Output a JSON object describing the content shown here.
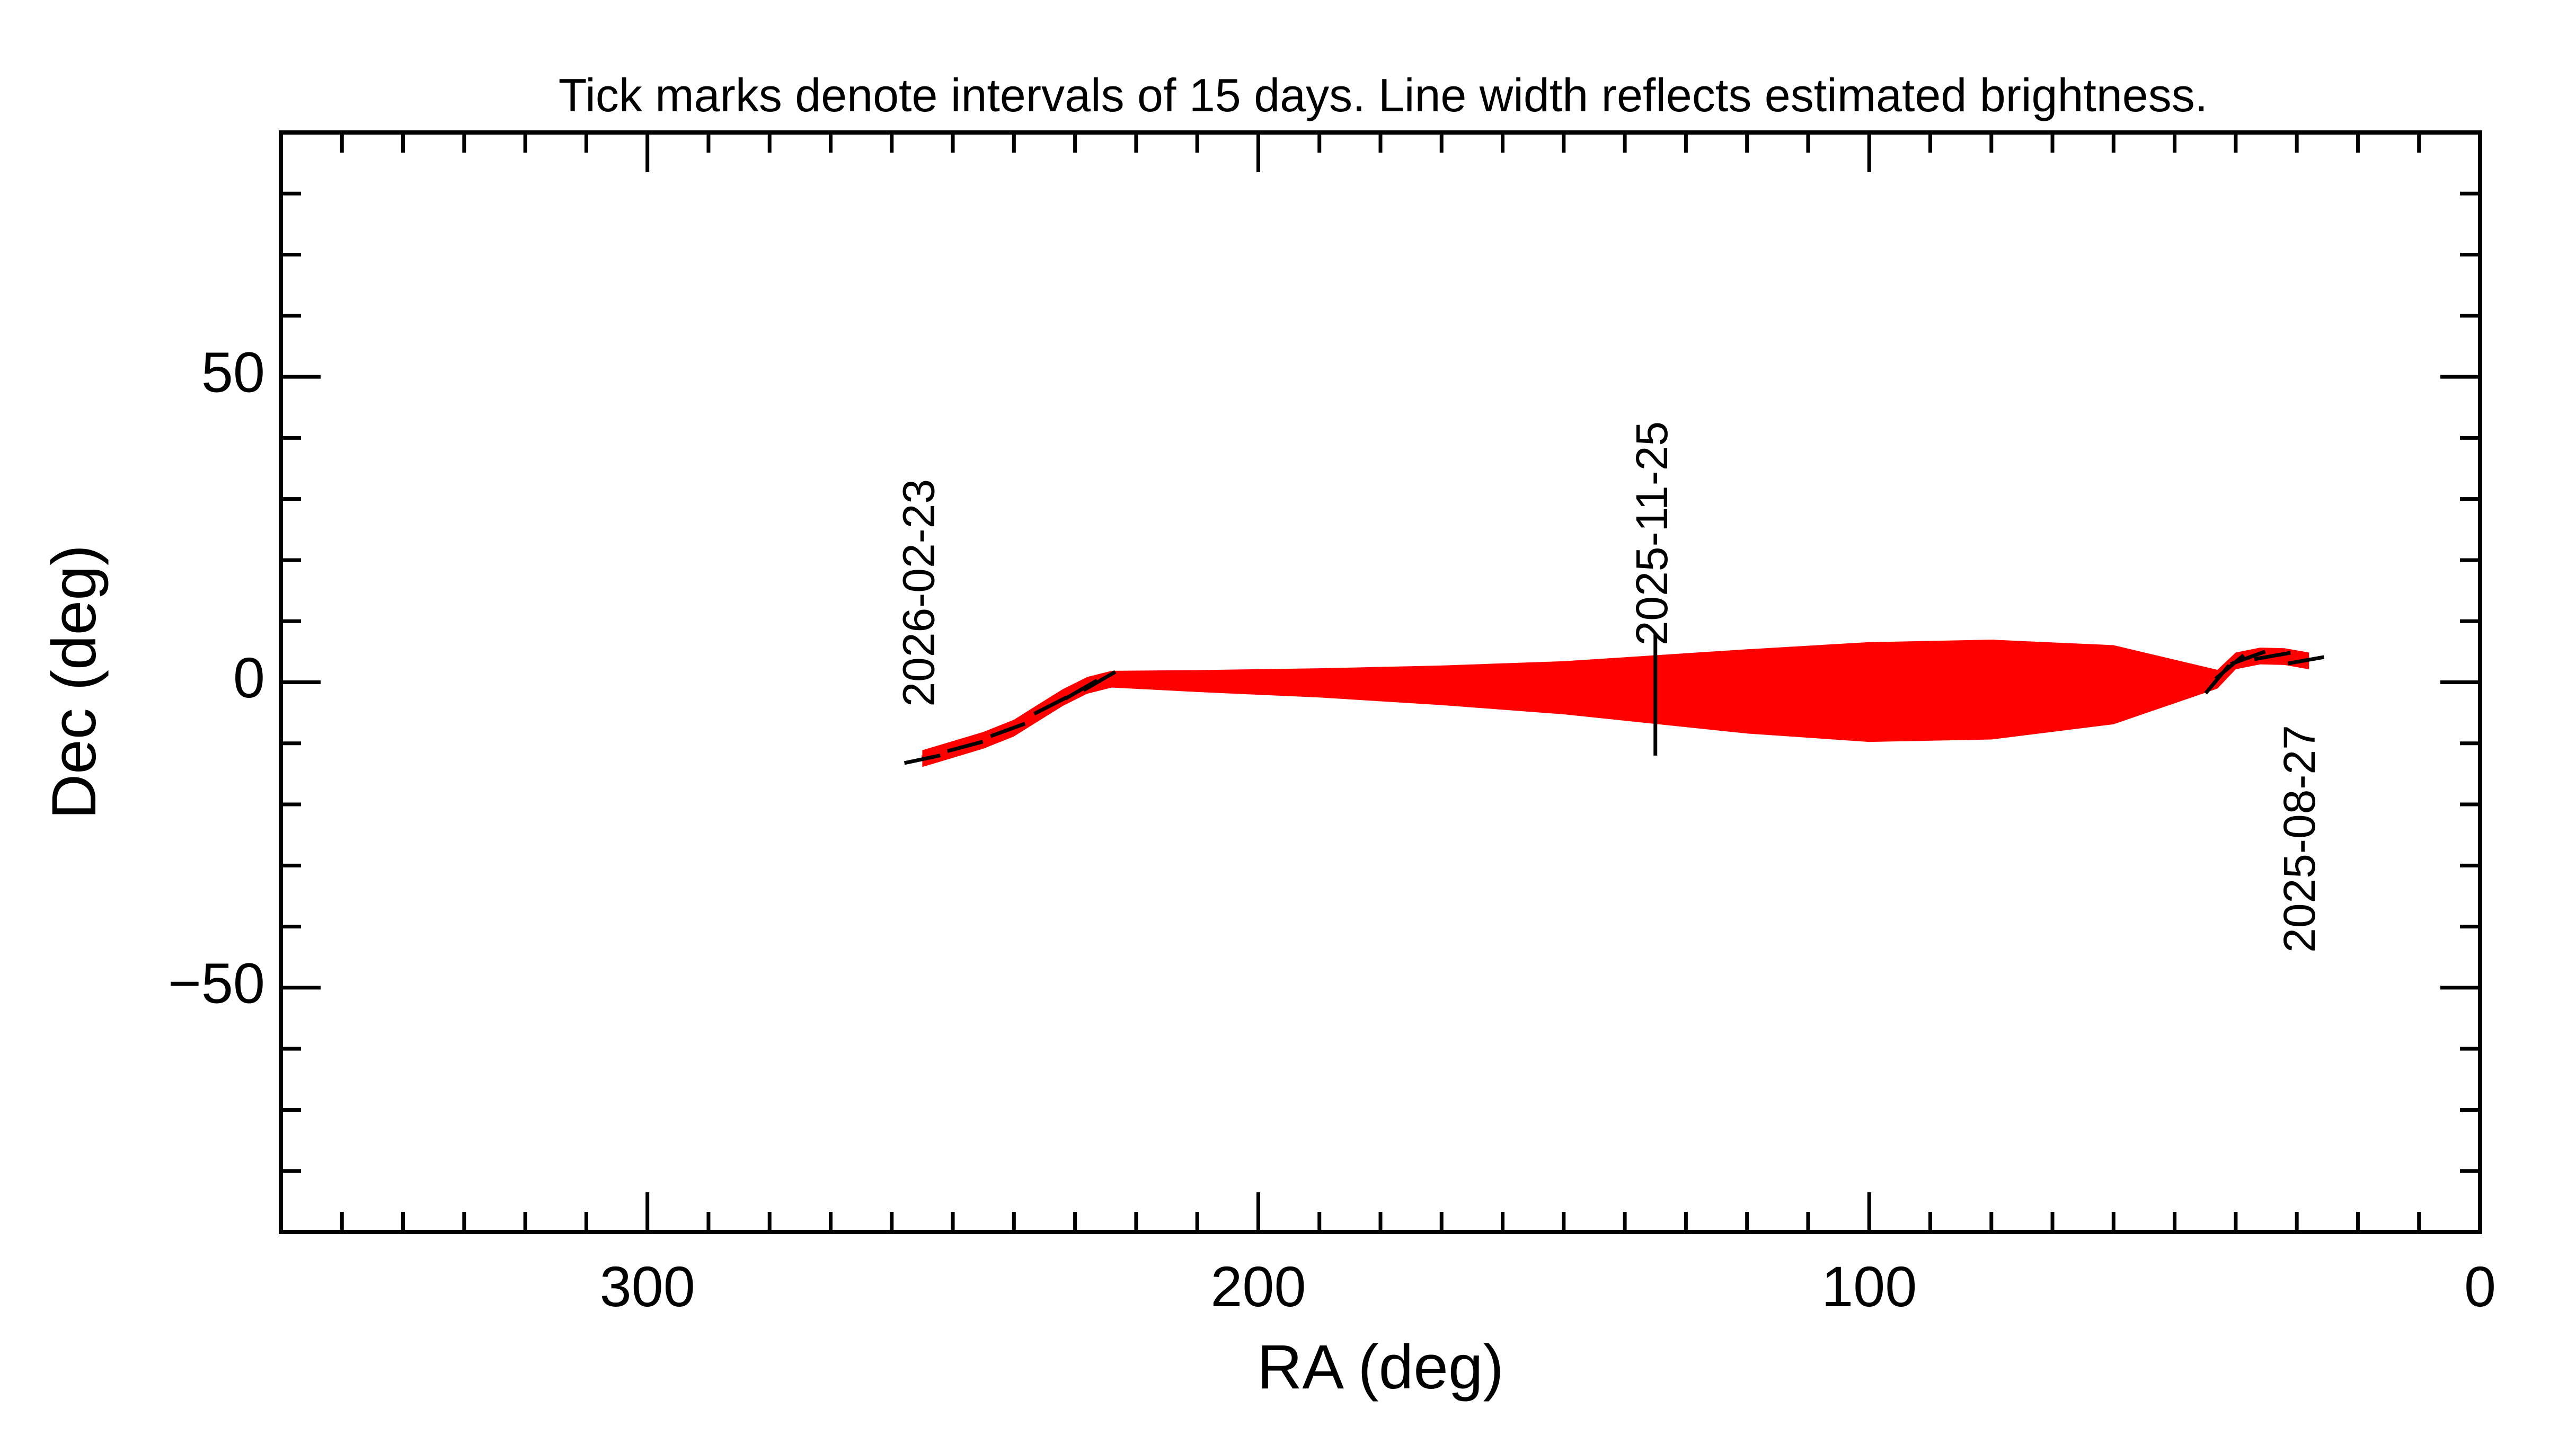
{
  "chart_data": {
    "type": "line",
    "title": "Tick marks denote intervals of 15 days.  Line width reflects estimated brightness.",
    "xlabel": "RA (deg)",
    "ylabel": "Dec (deg)",
    "xlim": [
      360,
      0
    ],
    "ylim": [
      -90,
      90
    ],
    "x_reversed": true,
    "x_major_ticks": [
      300,
      200,
      100,
      0
    ],
    "x_minor_step": 10,
    "y_major_ticks": [
      50,
      0,
      -50
    ],
    "y_minor_step": 10,
    "x_tick_labels": [
      "300",
      "200",
      "100",
      "0"
    ],
    "y_tick_labels": [
      "50",
      "0",
      "−50"
    ],
    "line_color": "#ff0000",
    "tick_color": "#000000",
    "series": [
      {
        "name": "track",
        "ra": [
          28,
          32,
          36,
          40,
          43,
          60,
          80,
          100,
          120,
          135,
          150,
          170,
          190,
          210,
          224,
          228,
          232,
          236,
          240,
          245,
          250,
          255
        ],
        "dec": [
          3.5,
          4.2,
          4.3,
          3.5,
          0.5,
          -0.4,
          -1.2,
          -1.6,
          -1.5,
          -1.2,
          -0.9,
          -0.5,
          -0.1,
          0.2,
          0.5,
          -0.5,
          -2.5,
          -5,
          -7.5,
          -9.5,
          -11,
          -12.5
        ],
        "brightness": [
          1.0,
          1.0,
          1.0,
          1.0,
          1.2,
          7.0,
          9.0,
          9.0,
          7.5,
          6.0,
          4.5,
          3.2,
          2.2,
          1.5,
          1.0,
          1.0,
          1.0,
          1.0,
          1.0,
          1.0,
          1.0,
          1.0
        ]
      }
    ],
    "date_ticks": [
      {
        "ra": 28.5,
        "dec": 3.6,
        "angle": -80,
        "length": 6
      },
      {
        "ra": 34,
        "dec": 4.3,
        "angle": -80,
        "length": 6
      },
      {
        "ra": 38,
        "dec": 4.0,
        "angle": -70,
        "length": 6
      },
      {
        "ra": 41,
        "dec": 2.5,
        "angle": -50,
        "length": 6
      },
      {
        "ra": 43,
        "dec": 0.5,
        "angle": -40,
        "length": 6
      },
      {
        "ra": 135,
        "dec": -2,
        "angle": 0,
        "length": 20
      },
      {
        "ra": 226,
        "dec": 0.2,
        "angle": -60,
        "length": 6
      },
      {
        "ra": 229,
        "dec": -1.2,
        "angle": -60,
        "length": 6
      },
      {
        "ra": 234,
        "dec": -3.8,
        "angle": -63,
        "length": 6
      },
      {
        "ra": 241,
        "dec": -7.8,
        "angle": -70,
        "length": 6
      },
      {
        "ra": 248,
        "dec": -10.5,
        "angle": -75,
        "length": 6
      },
      {
        "ra": 255,
        "dec": -12.6,
        "angle": -78,
        "length": 6
      }
    ],
    "annotations": [
      {
        "text": "2025-08-27",
        "ra": 29,
        "dec": -7,
        "anchor": "end"
      },
      {
        "text": "2025-11-25",
        "ra": 135,
        "dec": 6,
        "anchor": "start"
      },
      {
        "text": "2026-02-23",
        "ra": 255,
        "dec": -4,
        "anchor": "start"
      }
    ]
  }
}
